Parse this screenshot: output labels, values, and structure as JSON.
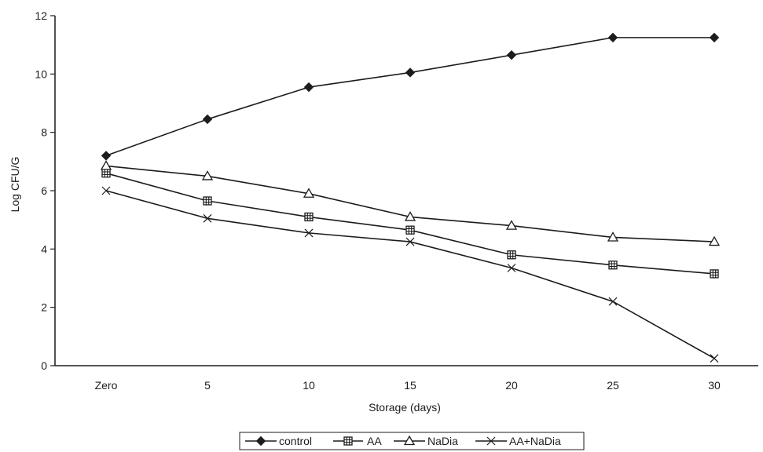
{
  "chart_data": {
    "type": "line",
    "title": "",
    "xlabel": "Storage (days)",
    "ylabel": "Log CFU/G",
    "categories": [
      "Zero",
      "5",
      "10",
      "15",
      "20",
      "25",
      "30"
    ],
    "ylim": [
      0,
      12
    ],
    "yticks": [
      0,
      2,
      4,
      6,
      8,
      10,
      12
    ],
    "grid": false,
    "legend_position": "bottom",
    "series": [
      {
        "name": "control",
        "marker": "diamond",
        "color": "#1c1c1c",
        "values": [
          7.2,
          8.45,
          9.55,
          10.05,
          10.65,
          11.25,
          11.25
        ]
      },
      {
        "name": "AA",
        "marker": "hatched-square",
        "color": "#1c1c1c",
        "values": [
          6.6,
          5.65,
          5.1,
          4.65,
          3.8,
          3.45,
          3.15
        ]
      },
      {
        "name": "NaDia",
        "marker": "triangle",
        "color": "#1c1c1c",
        "values": [
          6.85,
          6.5,
          5.9,
          5.1,
          4.8,
          4.4,
          4.25
        ]
      },
      {
        "name": "AA+NaDia",
        "marker": "x",
        "color": "#1c1c1c",
        "values": [
          6.0,
          5.05,
          4.55,
          4.25,
          3.35,
          2.2,
          0.25
        ]
      }
    ]
  }
}
